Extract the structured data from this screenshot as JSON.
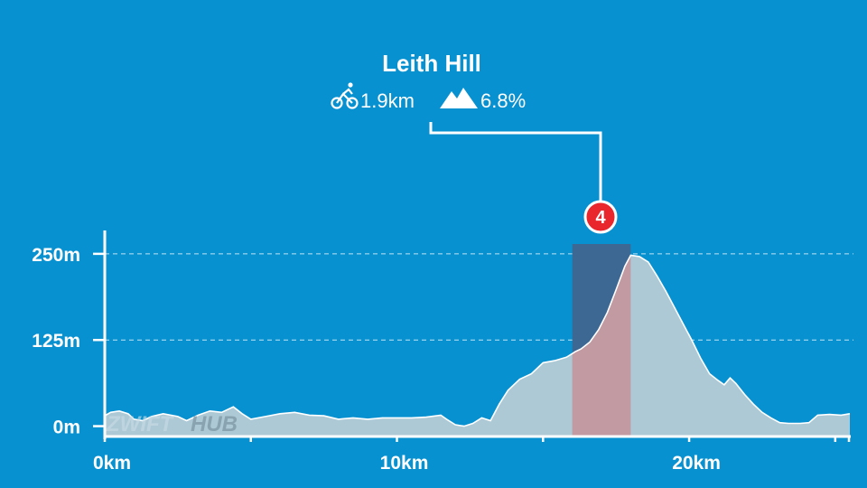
{
  "chart_data": {
    "type": "area",
    "x_unit": "km",
    "y_unit": "m",
    "xlim": [
      0,
      25.5
    ],
    "ylim": [
      -15,
      280
    ],
    "x_ticks": [
      {
        "value": 0,
        "label": "0km"
      },
      {
        "value": 10,
        "label": "10km"
      },
      {
        "value": 20,
        "label": "20km"
      }
    ],
    "y_ticks": [
      {
        "value": 0,
        "label": "0m"
      },
      {
        "value": 125,
        "label": "125m"
      },
      {
        "value": 250,
        "label": "250m"
      }
    ],
    "grid": "horizontal-dashed",
    "elevation_profile": [
      [
        0,
        15
      ],
      [
        0.2,
        20
      ],
      [
        0.5,
        22
      ],
      [
        0.8,
        18
      ],
      [
        1.0,
        10
      ],
      [
        1.3,
        8
      ],
      [
        1.6,
        14
      ],
      [
        2.0,
        18
      ],
      [
        2.5,
        14
      ],
      [
        2.8,
        8
      ],
      [
        3.2,
        16
      ],
      [
        3.6,
        22
      ],
      [
        4.0,
        20
      ],
      [
        4.4,
        28
      ],
      [
        4.7,
        18
      ],
      [
        5.0,
        10
      ],
      [
        5.5,
        14
      ],
      [
        6.0,
        18
      ],
      [
        6.5,
        20
      ],
      [
        7.0,
        16
      ],
      [
        7.5,
        15
      ],
      [
        8.0,
        10
      ],
      [
        8.5,
        12
      ],
      [
        9.0,
        10
      ],
      [
        9.5,
        12
      ],
      [
        10.0,
        12
      ],
      [
        10.5,
        12
      ],
      [
        11.0,
        13
      ],
      [
        11.5,
        16
      ],
      [
        11.7,
        10
      ],
      [
        12.0,
        2
      ],
      [
        12.3,
        0
      ],
      [
        12.6,
        4
      ],
      [
        12.9,
        12
      ],
      [
        13.2,
        8
      ],
      [
        13.5,
        32
      ],
      [
        13.8,
        52
      ],
      [
        14.2,
        68
      ],
      [
        14.6,
        76
      ],
      [
        15.0,
        92
      ],
      [
        15.4,
        95
      ],
      [
        15.8,
        100
      ],
      [
        16.1,
        108
      ],
      [
        16.3,
        112
      ],
      [
        16.6,
        122
      ],
      [
        16.9,
        140
      ],
      [
        17.2,
        165
      ],
      [
        17.5,
        198
      ],
      [
        17.8,
        232
      ],
      [
        18.0,
        248
      ],
      [
        18.3,
        246
      ],
      [
        18.6,
        238
      ],
      [
        18.9,
        218
      ],
      [
        19.2,
        196
      ],
      [
        19.5,
        172
      ],
      [
        19.8,
        148
      ],
      [
        20.1,
        124
      ],
      [
        20.4,
        98
      ],
      [
        20.7,
        76
      ],
      [
        21.0,
        66
      ],
      [
        21.2,
        60
      ],
      [
        21.4,
        70
      ],
      [
        21.6,
        62
      ],
      [
        21.9,
        46
      ],
      [
        22.2,
        32
      ],
      [
        22.5,
        20
      ],
      [
        22.8,
        12
      ],
      [
        23.1,
        5
      ],
      [
        23.4,
        4
      ],
      [
        23.8,
        4
      ],
      [
        24.1,
        5
      ],
      [
        24.4,
        16
      ],
      [
        24.8,
        17
      ],
      [
        25.2,
        16
      ],
      [
        25.5,
        18
      ]
    ],
    "segment": {
      "number": "4",
      "name": "Leith Hill",
      "start_km": 16.0,
      "end_km": 18.0,
      "length": "1.9km",
      "avg_grade": "6.8%"
    }
  },
  "watermark": {
    "part1": "ZWIFT",
    "part2": "HUB"
  },
  "colors": {
    "background": "#0891d0",
    "area_fill": "#adc9d6",
    "area_line": "#ffffff",
    "segment_fill": "#c19aa2",
    "segment_band": "#3e6894",
    "marker_red": "#e8262c"
  },
  "icons": {
    "bike": "cyclist-icon",
    "mountain": "mountain-icon"
  }
}
